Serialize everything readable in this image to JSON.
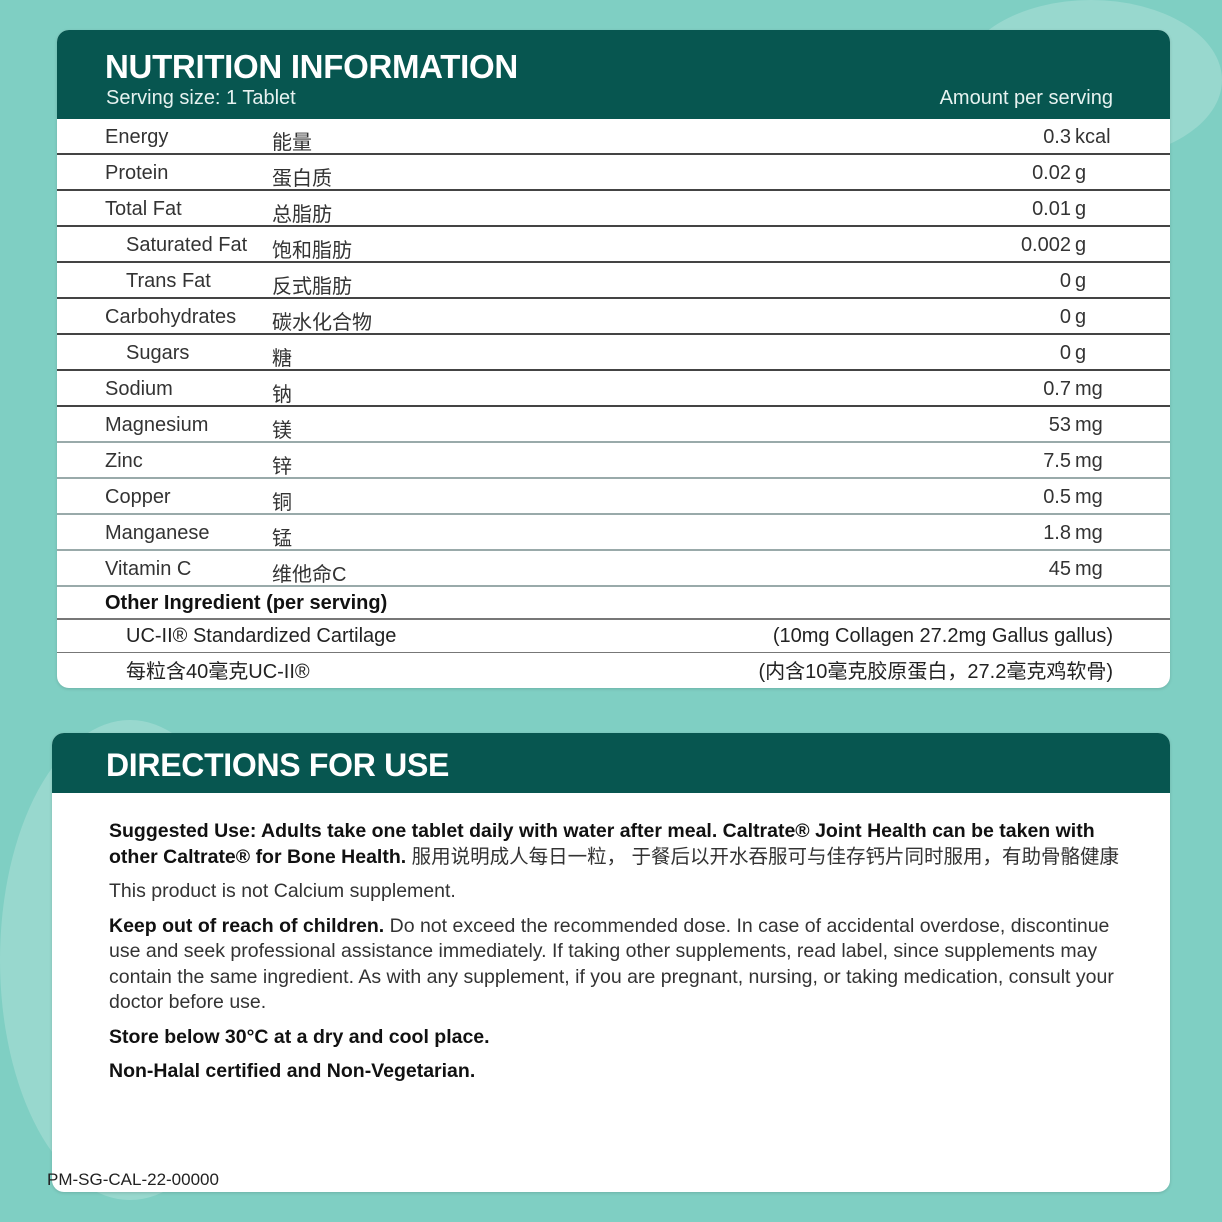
{
  "nutrition": {
    "title": "NUTRITION INFORMATION",
    "serving_size": "Serving size: 1 Tablet",
    "amount_header": "Amount per serving",
    "rows": [
      {
        "en": "Energy",
        "zh": "能量",
        "value": "0.3",
        "unit": "kcal",
        "indent": false
      },
      {
        "en": "Protein",
        "zh": "蛋白质",
        "value": "0.02",
        "unit": "g",
        "indent": false
      },
      {
        "en": "Total Fat",
        "zh": "总脂肪",
        "value": "0.01",
        "unit": "g",
        "indent": false
      },
      {
        "en": "Saturated Fat",
        "zh": "饱和脂肪",
        "value": "0.002",
        "unit": "g",
        "indent": true
      },
      {
        "en": "Trans Fat",
        "zh": "反式脂肪",
        "value": "0",
        "unit": "g",
        "indent": true
      },
      {
        "en": "Carbohydrates",
        "zh": "碳水化合物",
        "value": "0",
        "unit": "g",
        "indent": false
      },
      {
        "en": "Sugars",
        "zh": "糖",
        "value": "0",
        "unit": "g",
        "indent": true
      },
      {
        "en": "Sodium",
        "zh": "钠",
        "value": "0.7",
        "unit": "mg",
        "indent": false
      },
      {
        "en": "Magnesium",
        "zh": "镁",
        "value": "53",
        "unit": "mg",
        "indent": false
      },
      {
        "en": "Zinc",
        "zh": "锌",
        "value": "7.5",
        "unit": "mg",
        "indent": false
      },
      {
        "en": "Copper",
        "zh": "铜",
        "value": "0.5",
        "unit": "mg",
        "indent": false
      },
      {
        "en": "Manganese",
        "zh": "锰",
        "value": "1.8",
        "unit": "mg",
        "indent": false
      },
      {
        "en": "Vitamin C",
        "zh": "维他命C",
        "value": "45",
        "unit": "mg",
        "indent": false
      }
    ],
    "other_header": "Other Ingredient (per serving)",
    "other_en_name": "UC-II® Standardized Cartilage",
    "other_en_value": "(10mg Collagen 27.2mg Gallus gallus)",
    "other_zh_name": "每粒含40毫克UC-II®",
    "other_zh_value": "(内含10毫克胶原蛋白，27.2毫克鸡软骨)"
  },
  "directions": {
    "title": "DIRECTIONS FOR USE",
    "suggested_bold": "Suggested Use: Adults take one tablet daily with water after meal. Caltrate® Joint Health can be taken with other Caltrate® for Bone Health.",
    "suggested_zh": " 服用说明成人每日一粒， 于餐后以开水吞服可与佳存钙片同时服用，有助骨骼健康",
    "not_calcium": "This product is not Calcium supplement.",
    "keep_bold": "Keep out of reach of children.",
    "keep_text": " Do not exceed the recommended dose. In case of accidental overdose, discontinue use and seek professional assistance immediately. If taking other supplements, read label, since supplements may contain the same ingredient. As with any supplement, if you are pregnant, nursing, or taking medication, consult your doctor before use.",
    "store": "Store below 30°C at a dry and cool place.",
    "halal": "Non-Halal certified and Non-Vegetarian."
  },
  "footer_code": "PM-SG-CAL-22-00000",
  "colors": {
    "header": "#075650",
    "background": "#7fcfc3"
  }
}
